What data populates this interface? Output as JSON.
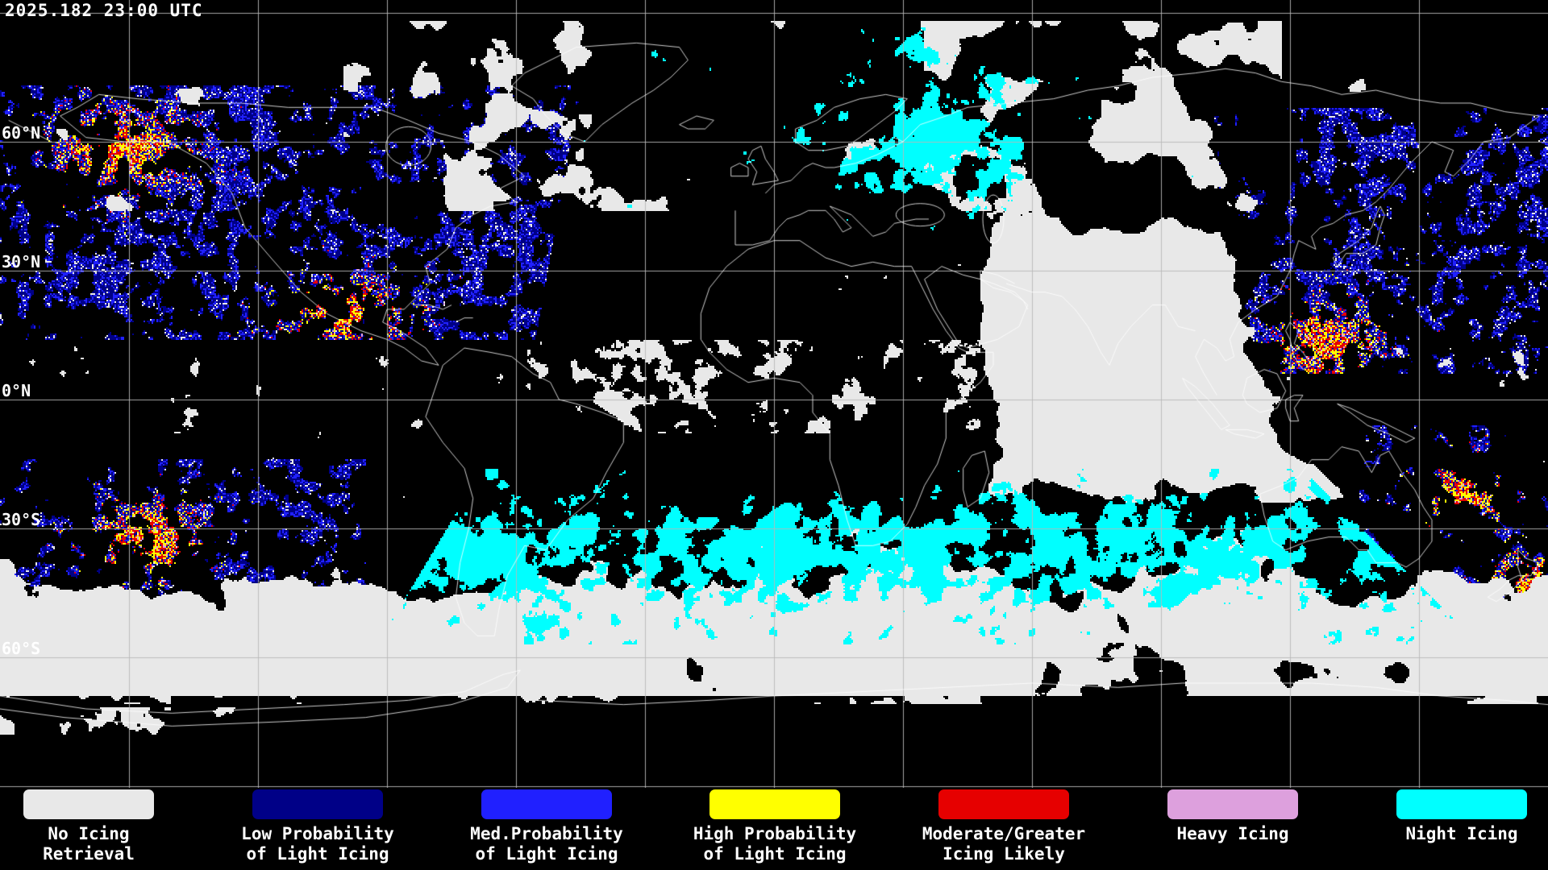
{
  "header": {
    "timestamp": "2025.182 23:00 UTC"
  },
  "map": {
    "background_color": "#000000",
    "grid_color": "#b8b8b8",
    "coastline_color": "#ffffff",
    "latitude_labels": [
      "60°N",
      "30°N",
      "0°N",
      "30°S",
      "60°S"
    ]
  },
  "legend": {
    "items": [
      {
        "color": "#e8e8e8",
        "label_line1": "No Icing",
        "label_line2": "Retrieval"
      },
      {
        "color": "#000087",
        "label_line1": "Low Probability",
        "label_line2": "of Light Icing"
      },
      {
        "color": "#2020ff",
        "label_line1": "Med.Probability",
        "label_line2": "of Light Icing"
      },
      {
        "color": "#ffff00",
        "label_line1": "High Probability",
        "label_line2": "of Light Icing"
      },
      {
        "color": "#e60000",
        "label_line1": "Moderate/Greater",
        "label_line2": "Icing Likely"
      },
      {
        "color": "#dda0dd",
        "label_line1": "Heavy Icing",
        "label_line2": ""
      },
      {
        "color": "#00ffff",
        "label_line1": "Night Icing",
        "label_line2": ""
      }
    ]
  }
}
